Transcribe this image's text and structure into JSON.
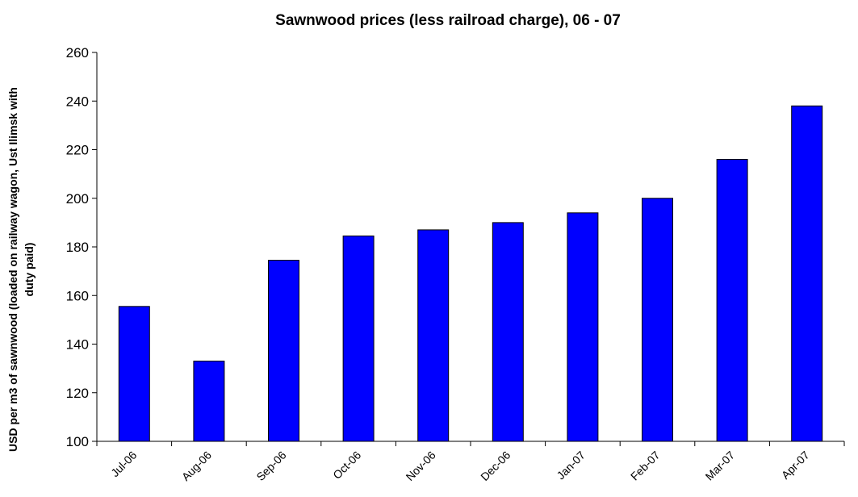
{
  "chart_data": {
    "type": "bar",
    "title": "Sawnwood prices (less railroad charge), 06 - 07",
    "xlabel": "",
    "ylabel_lines": [
      "USD per m3 of sawnwood (loaded on railway wagon, Ust Ilimsk with",
      "duty paid)"
    ],
    "categories": [
      "Jul-06",
      "Aug-06",
      "Sep-06",
      "Oct-06",
      "Nov-06",
      "Dec-06",
      "Jan-07",
      "Feb-07",
      "Mar-07",
      "Apr-07"
    ],
    "values": [
      155.5,
      133,
      174.5,
      184.5,
      187,
      190,
      194,
      200,
      216,
      238
    ],
    "ylim": [
      100,
      260
    ],
    "yticks": [
      "100",
      "120",
      "140",
      "160",
      "180",
      "200",
      "220",
      "240",
      "260"
    ],
    "grid": false,
    "legend": "none",
    "bar_color": "#0000ff",
    "bar_outline": "#000000"
  }
}
